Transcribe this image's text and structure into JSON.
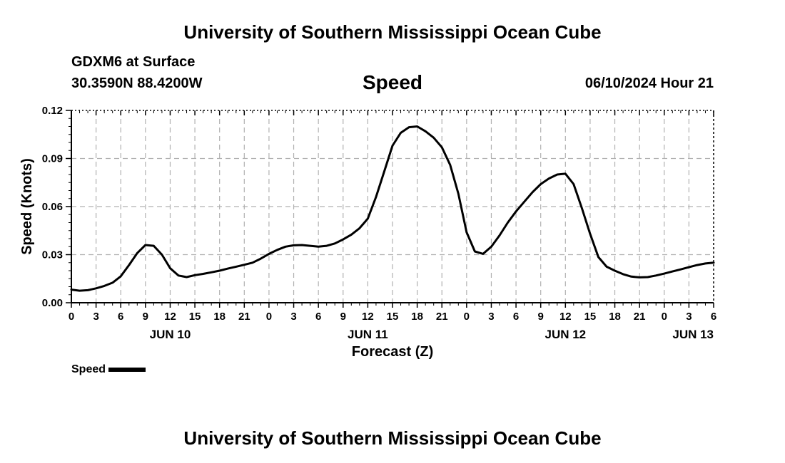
{
  "header": {
    "title": "University of Southern Mississippi Ocean Cube",
    "station": "GDXM6 at Surface",
    "coords": "30.3590N  88.4200W",
    "date": "06/10/2024 Hour 21"
  },
  "footer": {
    "title": "University of Southern Mississippi Ocean Cube"
  },
  "legend": {
    "label": "Speed",
    "color": "#000000"
  },
  "chart_data": {
    "type": "line",
    "title": "Speed",
    "xlabel": "Forecast (Z)",
    "ylabel": "Speed (Knots)",
    "ylim": [
      0,
      0.12
    ],
    "y_ticks": [
      "0.00",
      "0.03",
      "0.06",
      "0.09",
      "0.12"
    ],
    "x_unit": "hours since Jun 10 00Z",
    "xlim": [
      0,
      78
    ],
    "x_tick_labels": [
      "0",
      "3",
      "6",
      "9",
      "12",
      "15",
      "18",
      "21",
      "0",
      "3",
      "6",
      "9",
      "12",
      "15",
      "18",
      "21",
      "0",
      "3",
      "6",
      "9",
      "12",
      "15",
      "18",
      "21",
      "0",
      "3",
      "6"
    ],
    "date_labels": [
      {
        "label": "JUN 10",
        "hour": 12
      },
      {
        "label": "JUN 11",
        "hour": 36
      },
      {
        "label": "JUN 12",
        "hour": 60
      },
      {
        "label": "JUN 13",
        "hour": 84
      }
    ],
    "grid": true,
    "series": [
      {
        "name": "Speed",
        "color": "#000000",
        "x": [
          0,
          1,
          2,
          3,
          4,
          5,
          6,
          7,
          8,
          9,
          10,
          11,
          12,
          13,
          14,
          15,
          16,
          17,
          18,
          19,
          20,
          21,
          22,
          23,
          24,
          25,
          26,
          27,
          28,
          29,
          30,
          31,
          32,
          33,
          34,
          35,
          36,
          37,
          38,
          39,
          40,
          41,
          42,
          43,
          44,
          45,
          46,
          47,
          48,
          49,
          50,
          51,
          52,
          53,
          54,
          55,
          56,
          57,
          58,
          59,
          60,
          61,
          62,
          63,
          64,
          65,
          66,
          67,
          68,
          69,
          70,
          71,
          72,
          73,
          74,
          75,
          76,
          77,
          78
        ],
        "values": [
          0.0082,
          0.0075,
          0.0078,
          0.009,
          0.0105,
          0.0125,
          0.0165,
          0.0235,
          0.031,
          0.036,
          0.0355,
          0.03,
          0.0215,
          0.017,
          0.016,
          0.0172,
          0.018,
          0.019,
          0.02,
          0.0213,
          0.0225,
          0.0237,
          0.025,
          0.0275,
          0.0305,
          0.033,
          0.035,
          0.0358,
          0.036,
          0.0355,
          0.035,
          0.0355,
          0.037,
          0.0395,
          0.0425,
          0.0465,
          0.0525,
          0.066,
          0.082,
          0.098,
          0.106,
          0.1095,
          0.11,
          0.107,
          0.103,
          0.097,
          0.086,
          0.068,
          0.044,
          0.032,
          0.0305,
          0.035,
          0.042,
          0.05,
          0.057,
          0.063,
          0.069,
          0.074,
          0.0775,
          0.08,
          0.0805,
          0.074,
          0.059,
          0.043,
          0.0285,
          0.0225,
          0.02,
          0.0178,
          0.0163,
          0.0158,
          0.016,
          0.017,
          0.0182,
          0.0195,
          0.0208,
          0.0222,
          0.0235,
          0.0245,
          0.025
        ]
      }
    ]
  }
}
